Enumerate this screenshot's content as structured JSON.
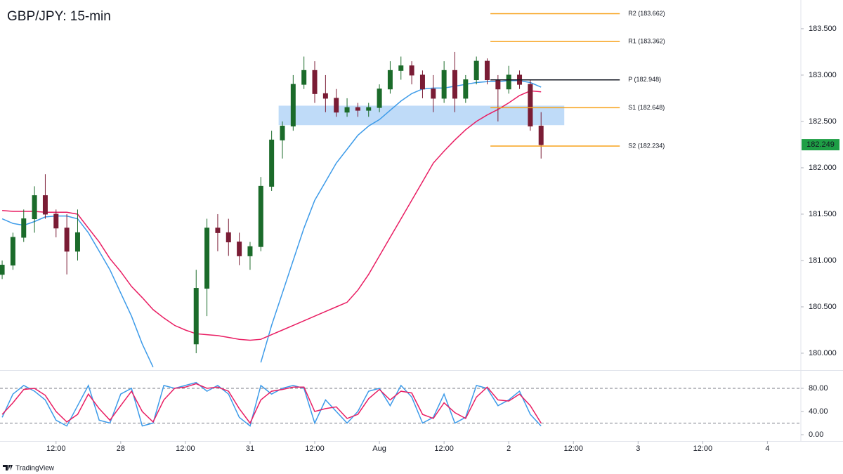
{
  "chart_data": [
    {
      "type": "candlestick",
      "title": "GBP/JPY: 15-min",
      "x": [
        -10,
        -8,
        -6,
        -4,
        -2,
        0,
        2,
        4,
        6,
        8,
        10,
        12,
        14,
        16,
        18,
        20,
        22,
        24,
        26,
        28,
        30,
        32,
        34,
        36,
        38,
        40,
        42,
        44,
        46,
        48,
        50,
        52,
        54,
        56,
        58,
        60,
        62,
        64,
        66,
        68,
        70,
        72,
        74,
        76,
        78,
        80,
        82,
        84,
        86,
        88,
        90
      ],
      "open": [
        180.85,
        180.95,
        181.25,
        181.45,
        181.7,
        181.5,
        181.35,
        181.1,
        null,
        null,
        null,
        null,
        null,
        null,
        null,
        null,
        null,
        null,
        180.1,
        180.7,
        181.35,
        181.3,
        181.2,
        181.05,
        181.15,
        181.8,
        182.3,
        182.45,
        182.9,
        183.05,
        182.8,
        182.75,
        182.6,
        182.65,
        182.62,
        182.65,
        182.85,
        183.05,
        183.1,
        183.0,
        182.85,
        182.75,
        183.05,
        182.75,
        182.95,
        183.15,
        182.95,
        182.85,
        183.0,
        182.9,
        182.45
      ],
      "high": [
        181.0,
        181.3,
        181.55,
        181.8,
        181.93,
        181.55,
        181.5,
        181.55,
        null,
        null,
        null,
        null,
        null,
        null,
        null,
        null,
        null,
        null,
        180.9,
        181.45,
        181.5,
        181.45,
        181.3,
        181.2,
        181.9,
        182.4,
        182.5,
        183.0,
        183.2,
        183.15,
        183.0,
        182.85,
        182.75,
        182.7,
        182.7,
        182.9,
        183.15,
        183.2,
        183.15,
        183.05,
        183.0,
        183.15,
        183.25,
        183.0,
        183.2,
        183.18,
        183.0,
        183.1,
        183.05,
        182.95,
        182.6
      ],
      "low": [
        180.8,
        180.9,
        181.2,
        181.3,
        181.45,
        181.25,
        180.85,
        181.0,
        null,
        null,
        null,
        null,
        null,
        null,
        null,
        null,
        null,
        null,
        180.0,
        180.4,
        181.1,
        181.05,
        180.95,
        180.9,
        181.1,
        181.75,
        182.1,
        182.4,
        182.85,
        182.7,
        182.6,
        182.55,
        182.55,
        182.55,
        182.55,
        182.6,
        182.8,
        182.95,
        182.9,
        182.75,
        182.6,
        182.7,
        182.6,
        182.7,
        182.9,
        182.9,
        182.5,
        182.8,
        182.85,
        182.4,
        182.1
      ],
      "close": [
        180.95,
        181.25,
        181.45,
        181.7,
        181.5,
        181.35,
        181.1,
        181.3,
        null,
        null,
        null,
        null,
        null,
        null,
        null,
        null,
        null,
        null,
        180.7,
        181.35,
        181.3,
        181.2,
        181.05,
        181.15,
        181.8,
        182.3,
        182.45,
        182.9,
        183.05,
        182.8,
        182.75,
        182.6,
        182.65,
        182.62,
        182.65,
        182.85,
        183.05,
        183.1,
        183.0,
        182.85,
        182.75,
        183.05,
        182.75,
        182.95,
        183.15,
        182.95,
        182.85,
        183.0,
        182.9,
        182.45,
        182.249
      ],
      "up_color": "#1b6b2a",
      "down_color": "#7a1c35",
      "series": [
        {
          "color": "#3d9be9",
          "values": [
            181.45,
            181.4,
            181.38,
            181.42,
            181.47,
            181.48,
            181.48,
            181.45,
            181.3,
            181.1,
            180.9,
            180.65,
            180.4,
            180.1,
            179.85,
            null,
            null,
            null,
            null,
            null,
            null,
            null,
            null,
            null,
            179.9,
            180.3,
            180.65,
            181.0,
            181.35,
            181.65,
            181.85,
            182.05,
            182.2,
            182.35,
            182.45,
            182.52,
            182.62,
            182.72,
            182.8,
            182.85,
            182.86,
            182.86,
            182.88,
            182.9,
            182.92,
            182.93,
            182.93,
            182.94,
            182.94,
            182.92,
            182.87
          ]
        },
        {
          "color": "#e91e63",
          "values": [
            181.54,
            181.53,
            181.53,
            181.53,
            181.52,
            181.52,
            181.52,
            181.5,
            181.35,
            181.2,
            181.02,
            180.88,
            180.72,
            180.6,
            180.47,
            180.38,
            180.3,
            180.25,
            180.21,
            180.2,
            180.19,
            180.17,
            180.15,
            180.14,
            180.15,
            180.2,
            180.25,
            180.3,
            180.35,
            180.4,
            180.45,
            180.5,
            180.55,
            180.68,
            180.85,
            181.05,
            181.25,
            181.45,
            181.65,
            181.85,
            182.05,
            182.18,
            182.3,
            182.41,
            182.5,
            182.57,
            182.63,
            182.7,
            182.78,
            182.83,
            182.82
          ]
        }
      ],
      "levels": [
        {
          "value": 183.662,
          "label": "R2 (183.662)",
          "color": "#f7a21b"
        },
        {
          "value": 183.362,
          "label": "R1 (183.362)",
          "color": "#f7a21b"
        },
        {
          "value": 182.948,
          "label": "P (182.948)",
          "color": "#131722"
        },
        {
          "value": 182.648,
          "label": "S1 (182.648)",
          "color": "#f7a21b"
        },
        {
          "value": 182.234,
          "label": "S2 (182.234)",
          "color": "#f7a21b"
        }
      ],
      "levels_x": [
        80.6,
        104.6
      ],
      "zone": {
        "xlim": [
          41.3,
          94.3
        ],
        "ylim": [
          182.46,
          182.67
        ],
        "color": "#a9cff5"
      },
      "last_color": "#1e9e45",
      "xlim": [
        -10.4,
        138.2
      ],
      "ylim": [
        179.818,
        183.81
      ],
      "yticks": [
        {
          "value": 180,
          "label": "180.000"
        },
        {
          "value": 180.5,
          "label": "180.500"
        },
        {
          "value": 181,
          "label": "181.000"
        },
        {
          "value": 181.5,
          "label": "181.500"
        },
        {
          "value": 182,
          "label": "182.000"
        },
        {
          "value": 182.5,
          "label": "182.500"
        },
        {
          "value": 183,
          "label": "183.000"
        },
        {
          "value": 183.5,
          "label": "183.500"
        }
      ]
    },
    {
      "type": "line",
      "series": [
        {
          "color": "#3d9be9",
          "values": [
            30,
            70,
            85,
            75,
            60,
            25,
            15,
            50,
            85,
            25,
            20,
            70,
            80,
            15,
            20,
            85,
            80,
            85,
            90,
            75,
            85,
            70,
            30,
            15,
            85,
            70,
            80,
            85,
            80,
            20,
            60,
            40,
            20,
            40,
            75,
            80,
            50,
            85,
            65,
            20,
            30,
            70,
            20,
            30,
            85,
            80,
            50,
            60,
            75,
            35,
            15
          ]
        },
        {
          "color": "#e91e63",
          "values": [
            35,
            55,
            78,
            80,
            68,
            40,
            22,
            35,
            70,
            45,
            25,
            50,
            75,
            40,
            22,
            60,
            80,
            82,
            88,
            80,
            82,
            75,
            45,
            20,
            60,
            75,
            78,
            82,
            82,
            40,
            45,
            48,
            28,
            35,
            62,
            78,
            60,
            75,
            72,
            35,
            28,
            55,
            38,
            28,
            65,
            82,
            60,
            58,
            70,
            50,
            20
          ]
        }
      ],
      "levels": [
        80,
        20
      ],
      "xlim": [
        -10.4,
        138.2
      ],
      "ylim": [
        -10.9,
        111.5
      ],
      "yticks": [
        {
          "value": 80,
          "label": "80.00"
        },
        {
          "value": 40,
          "label": "40.00"
        },
        {
          "value": 0,
          "label": "0.00"
        }
      ],
      "xticks": [
        {
          "value": 0,
          "label": "12:00"
        },
        {
          "value": 12,
          "label": "28"
        },
        {
          "value": 24,
          "label": "12:00"
        },
        {
          "value": 36,
          "label": "31"
        },
        {
          "value": 48,
          "label": "12:00"
        },
        {
          "value": 60,
          "label": "Aug"
        },
        {
          "value": 72,
          "label": "12:00"
        },
        {
          "value": 84,
          "label": "2"
        },
        {
          "value": 96,
          "label": "12:00"
        },
        {
          "value": 108,
          "label": "3"
        },
        {
          "value": 120,
          "label": "12:00"
        },
        {
          "value": 132,
          "label": "4"
        }
      ]
    }
  ],
  "footer": "TradingView"
}
